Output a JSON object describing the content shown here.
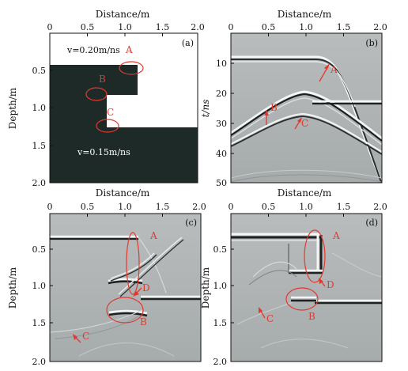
{
  "panels": [
    {
      "id": "a",
      "tag": "(a)",
      "top_axis_title": "Distance/m",
      "left_axis_title": "Depth/m",
      "x_ticks": [
        "0",
        "0.5",
        "1.0",
        "1.5",
        "2.0"
      ],
      "y_ticks": [
        "0.5",
        "1.0",
        "1.5",
        "2.0"
      ],
      "model_text": {
        "upper": "v=0.20m/ns",
        "lower": "v=0.15m/ns"
      },
      "markers": [
        "A",
        "B",
        "C"
      ]
    },
    {
      "id": "b",
      "tag": "(b)",
      "top_axis_title": "Distance/m",
      "left_axis_title": "t/ns",
      "x_ticks": [
        "0",
        "0.5",
        "1.0",
        "1.5",
        "2.0"
      ],
      "y_ticks": [
        "10",
        "20",
        "30",
        "40",
        "50"
      ],
      "markers": [
        "A",
        "B",
        "C"
      ]
    },
    {
      "id": "c",
      "tag": "(c)",
      "top_axis_title": "Distance/m",
      "left_axis_title": "Depth/m",
      "x_ticks": [
        "0",
        "0.5",
        "1.0",
        "1.5",
        "2.0"
      ],
      "y_ticks": [
        "0.5",
        "1.0",
        "1.5",
        "2.0"
      ],
      "markers": [
        "A",
        "B",
        "C",
        "D"
      ]
    },
    {
      "id": "d",
      "tag": "(d)",
      "top_axis_title": "Distance/m",
      "left_axis_title": "Depth/m",
      "x_ticks": [
        "0",
        "0.5",
        "1.0",
        "1.5",
        "2.0"
      ],
      "y_ticks": [
        "0.5",
        "1.0",
        "1.5",
        "2.0"
      ],
      "markers": [
        "A",
        "B",
        "C",
        "D"
      ]
    }
  ],
  "colors": {
    "marker": "#e03a2f",
    "dark_fill": "#1e2a28",
    "image_bg": "#9ea3a5"
  }
}
